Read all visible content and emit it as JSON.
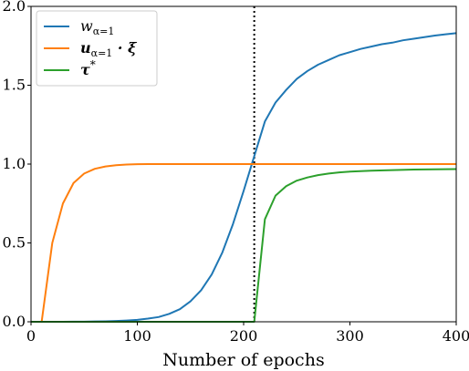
{
  "chart_data": {
    "type": "line",
    "xlabel": "Number of epochs",
    "ylabel": "",
    "xlim": [
      0,
      400
    ],
    "ylim": [
      0,
      2.0
    ],
    "x_ticks": [
      "0",
      "100",
      "200",
      "300",
      "400"
    ],
    "y_ticks": [
      "0.0",
      "0.5",
      "1.0",
      "1.5",
      "2.0"
    ],
    "grid": false,
    "legend_position": "top-left",
    "vline": {
      "x": 210,
      "style": "dotted",
      "color": "#000000"
    },
    "series": [
      {
        "name": "w_{α=1}",
        "legend_main": "w",
        "legend_sub": "α=1",
        "legend_tail": "",
        "color": "#1f77b4",
        "x": [
          0,
          10,
          20,
          30,
          40,
          50,
          60,
          70,
          80,
          90,
          100,
          110,
          120,
          130,
          140,
          150,
          160,
          170,
          180,
          190,
          200,
          210,
          220,
          230,
          240,
          250,
          260,
          270,
          280,
          290,
          300,
          310,
          320,
          330,
          340,
          350,
          360,
          370,
          380,
          390,
          400
        ],
        "y": [
          0.0,
          0.0,
          0.0,
          0.0,
          0.001,
          0.001,
          0.002,
          0.003,
          0.005,
          0.008,
          0.012,
          0.02,
          0.03,
          0.05,
          0.08,
          0.13,
          0.2,
          0.3,
          0.44,
          0.62,
          0.83,
          1.05,
          1.27,
          1.39,
          1.47,
          1.54,
          1.59,
          1.63,
          1.66,
          1.69,
          1.71,
          1.73,
          1.745,
          1.76,
          1.77,
          1.785,
          1.795,
          1.805,
          1.815,
          1.823,
          1.83
        ]
      },
      {
        "name": "u_{α=1} · ξ",
        "legend_main": "u",
        "legend_sub": "α=1",
        "legend_tail": " · ξ",
        "color": "#ff7f0e",
        "x": [
          0,
          10,
          20,
          30,
          40,
          50,
          60,
          70,
          80,
          90,
          100,
          110,
          120,
          150,
          200,
          250,
          300,
          350,
          400
        ],
        "y": [
          0.0,
          0.0,
          0.5,
          0.75,
          0.88,
          0.94,
          0.97,
          0.985,
          0.993,
          0.997,
          0.999,
          1.0,
          1.0,
          1.0,
          1.0,
          1.0,
          1.0,
          1.0,
          1.0
        ]
      },
      {
        "name": "τ*",
        "legend_main": "τ",
        "legend_sub": "",
        "legend_tail": "*",
        "color": "#2ca02c",
        "x": [
          0,
          50,
          100,
          150,
          200,
          210,
          220,
          230,
          240,
          250,
          260,
          270,
          280,
          290,
          300,
          320,
          340,
          360,
          380,
          400
        ],
        "y": [
          0.0,
          0.0,
          0.0,
          0.0,
          0.0,
          0.0,
          0.65,
          0.8,
          0.86,
          0.895,
          0.915,
          0.93,
          0.94,
          0.947,
          0.952,
          0.958,
          0.962,
          0.965,
          0.967,
          0.968
        ]
      }
    ]
  }
}
